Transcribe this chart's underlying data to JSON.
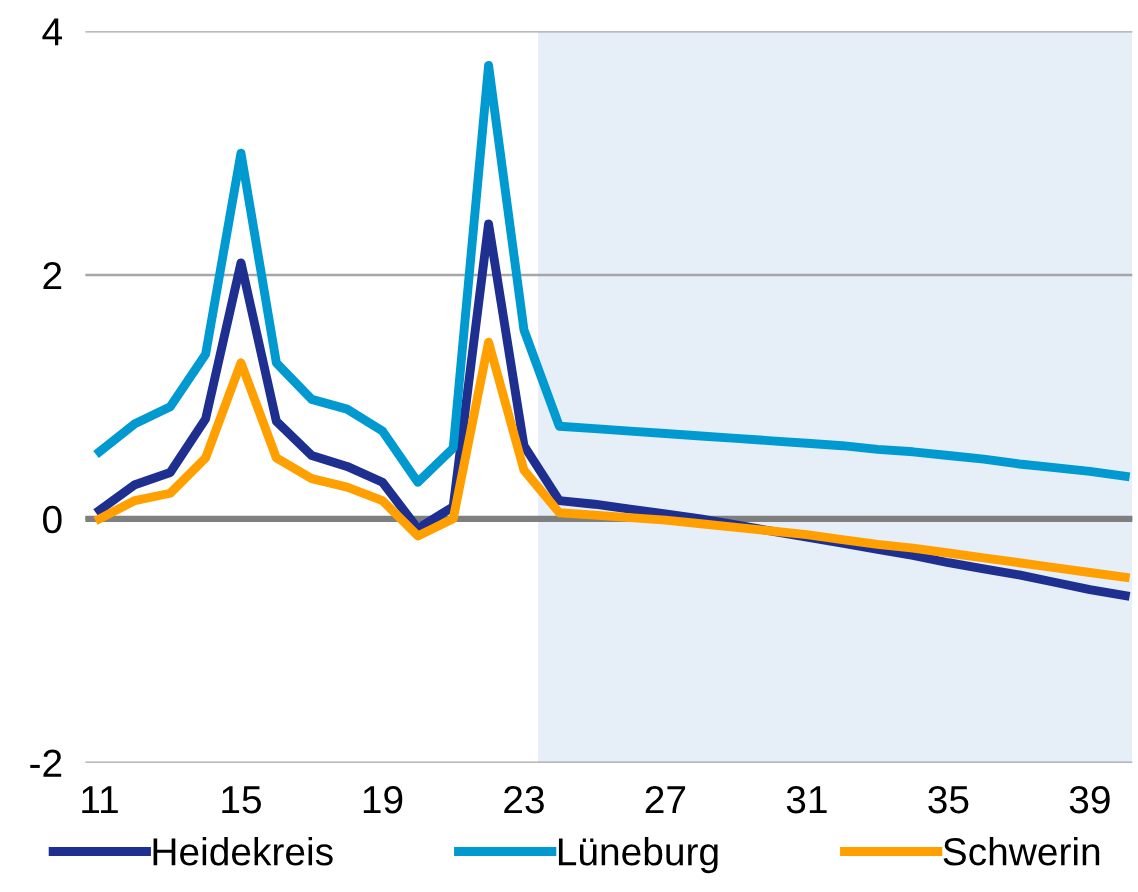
{
  "chart_data": {
    "type": "line",
    "x": [
      11,
      12,
      13,
      14,
      15,
      16,
      17,
      18,
      19,
      20,
      21,
      22,
      23,
      24,
      25,
      26,
      27,
      28,
      29,
      30,
      31,
      32,
      33,
      34,
      35,
      36,
      37,
      38,
      39,
      40
    ],
    "series": [
      {
        "name": "Heidekreis",
        "color": "#1f2f8f",
        "values": [
          0.07,
          0.28,
          0.38,
          0.82,
          2.1,
          0.8,
          0.52,
          0.43,
          0.3,
          -0.08,
          0.1,
          2.42,
          0.6,
          0.15,
          0.12,
          0.08,
          0.04,
          0.0,
          -0.05,
          -0.1,
          -0.15,
          -0.2,
          -0.25,
          -0.3,
          -0.36,
          -0.41,
          -0.46,
          -0.52,
          -0.58,
          -0.63
        ]
      },
      {
        "name": "Lüneburg",
        "color": "#0099d0",
        "values": [
          0.55,
          0.78,
          0.92,
          1.35,
          3.0,
          1.28,
          0.98,
          0.9,
          0.72,
          0.3,
          0.58,
          3.72,
          1.55,
          0.76,
          0.74,
          0.72,
          0.7,
          0.68,
          0.66,
          0.64,
          0.62,
          0.6,
          0.57,
          0.55,
          0.52,
          0.49,
          0.45,
          0.42,
          0.39,
          0.35
        ]
      },
      {
        "name": "Schwerin",
        "color": "#ffa000",
        "values": [
          0.0,
          0.15,
          0.21,
          0.5,
          1.28,
          0.5,
          0.33,
          0.26,
          0.15,
          -0.14,
          0.0,
          1.45,
          0.4,
          0.05,
          0.03,
          0.01,
          -0.01,
          -0.04,
          -0.07,
          -0.1,
          -0.13,
          -0.17,
          -0.21,
          -0.24,
          -0.28,
          -0.32,
          -0.36,
          -0.4,
          -0.44,
          -0.48
        ]
      }
    ],
    "xlim": [
      10.6,
      40.2
    ],
    "xticks": [
      11,
      15,
      19,
      23,
      27,
      31,
      35,
      39
    ],
    "ylim": [
      -2,
      4
    ],
    "yticks": [
      -2,
      0,
      2,
      4
    ],
    "grid": "y",
    "legend": "bottom",
    "line_style": "solid",
    "marker": "none",
    "ref_lines": [
      {
        "axis": "y",
        "value": 0,
        "color": "#7f7f7f"
      }
    ],
    "bands": [
      {
        "axis": "x",
        "from": 23.4,
        "to": 40.2,
        "color": "#e6eef7"
      }
    ]
  }
}
